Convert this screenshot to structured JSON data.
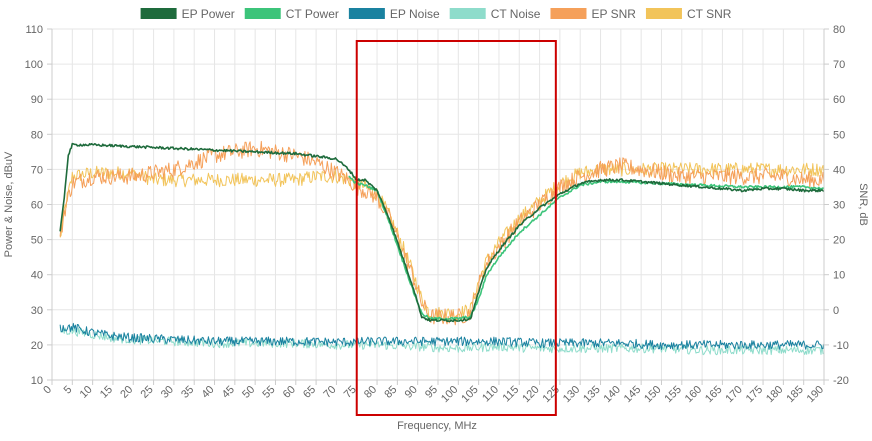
{
  "chart_data": {
    "type": "line",
    "title": "",
    "xlabel": "Frequency, MHz",
    "ylabel_left": "Power & Noise, dBuV",
    "ylabel_right": "SNR, dB",
    "xlim": [
      0,
      190
    ],
    "ylim_left": [
      10,
      110
    ],
    "ylim_right": [
      -20,
      80
    ],
    "x_ticks": [
      "0",
      "5",
      "10",
      "15",
      "20",
      "25",
      "30",
      "35",
      "40",
      "45",
      "50",
      "55",
      "60",
      "65",
      "70",
      "75",
      "80",
      "85",
      "90",
      "95",
      "100",
      "105",
      "110",
      "115",
      "120",
      "125",
      "130",
      "135",
      "140",
      "145",
      "150",
      "155",
      "160",
      "165",
      "170",
      "175",
      "180",
      "185",
      "190"
    ],
    "y_left_ticks": [
      "10",
      "20",
      "30",
      "40",
      "50",
      "60",
      "70",
      "80",
      "90",
      "100",
      "110"
    ],
    "y_right_ticks": [
      "-20",
      "-10",
      "0",
      "10",
      "20",
      "30",
      "40",
      "50",
      "60",
      "70",
      "80"
    ],
    "grid": true,
    "legend_position": "top-center",
    "legend": [
      {
        "name": "EP Power",
        "color": "#1e6b3c"
      },
      {
        "name": "CT Power",
        "color": "#3cc47a"
      },
      {
        "name": "EP Noise",
        "color": "#1a82a0"
      },
      {
        "name": "CT Noise",
        "color": "#8edccb"
      },
      {
        "name": "EP SNR",
        "color": "#f5a05a"
      },
      {
        "name": "CT SNR",
        "color": "#f2c45a"
      }
    ],
    "highlight_box": {
      "x_range": [
        75,
        124
      ],
      "color": "#cc0000"
    },
    "series": [
      {
        "name": "EP Power",
        "axis": "left",
        "color": "#1e6b3c",
        "points": [
          [
            2,
            52
          ],
          [
            3,
            62
          ],
          [
            4,
            74
          ],
          [
            5,
            77
          ],
          [
            10,
            77
          ],
          [
            20,
            76.5
          ],
          [
            30,
            76
          ],
          [
            40,
            75.5
          ],
          [
            50,
            75
          ],
          [
            60,
            74.5
          ],
          [
            70,
            73
          ],
          [
            73,
            70
          ],
          [
            75,
            67
          ],
          [
            77,
            67
          ],
          [
            80,
            64
          ],
          [
            83,
            56
          ],
          [
            86,
            46
          ],
          [
            89,
            36
          ],
          [
            91,
            28
          ],
          [
            93,
            27
          ],
          [
            100,
            27
          ],
          [
            103,
            27.5
          ],
          [
            105,
            35
          ],
          [
            107,
            42
          ],
          [
            110,
            47
          ],
          [
            115,
            54
          ],
          [
            120,
            59
          ],
          [
            125,
            63
          ],
          [
            130,
            66
          ],
          [
            135,
            67
          ],
          [
            140,
            67
          ],
          [
            145,
            66.5
          ],
          [
            150,
            66
          ],
          [
            155,
            65.5
          ],
          [
            160,
            65
          ],
          [
            165,
            64.5
          ],
          [
            170,
            64
          ],
          [
            175,
            64.5
          ],
          [
            180,
            64.5
          ],
          [
            185,
            64
          ],
          [
            190,
            64
          ]
        ]
      },
      {
        "name": "CT Power",
        "axis": "left",
        "color": "#3cc47a",
        "points": [
          [
            73,
            68
          ],
          [
            75,
            66
          ],
          [
            77,
            65.5
          ],
          [
            80,
            64
          ],
          [
            83,
            55
          ],
          [
            86,
            45
          ],
          [
            89,
            35
          ],
          [
            91,
            29
          ],
          [
            93,
            27.5
          ],
          [
            100,
            27.5
          ],
          [
            103,
            28
          ],
          [
            105,
            33
          ],
          [
            107,
            40
          ],
          [
            110,
            45
          ],
          [
            115,
            52
          ],
          [
            120,
            57
          ],
          [
            125,
            62
          ],
          [
            130,
            65.5
          ],
          [
            135,
            66.5
          ],
          [
            140,
            66.5
          ],
          [
            150,
            66
          ],
          [
            160,
            65.5
          ],
          [
            170,
            65
          ],
          [
            180,
            65
          ],
          [
            185,
            65
          ],
          [
            190,
            64.5
          ]
        ]
      },
      {
        "name": "EP Noise",
        "axis": "left",
        "color": "#1a82a0",
        "points": [
          [
            2,
            25
          ],
          [
            5,
            25
          ],
          [
            10,
            23.5
          ],
          [
            15,
            22.5
          ],
          [
            20,
            22
          ],
          [
            30,
            21.5
          ],
          [
            40,
            21
          ],
          [
            50,
            21
          ],
          [
            60,
            21
          ],
          [
            70,
            20.8
          ],
          [
            80,
            21
          ],
          [
            90,
            21
          ],
          [
            100,
            21
          ],
          [
            110,
            21
          ],
          [
            120,
            20.5
          ],
          [
            130,
            20.5
          ],
          [
            140,
            20.5
          ],
          [
            150,
            20
          ],
          [
            160,
            20
          ],
          [
            170,
            20
          ],
          [
            180,
            20
          ],
          [
            190,
            20
          ]
        ]
      },
      {
        "name": "CT Noise",
        "axis": "left",
        "color": "#8edccb",
        "points": [
          [
            2,
            24
          ],
          [
            5,
            24
          ],
          [
            10,
            23
          ],
          [
            15,
            22
          ],
          [
            20,
            21.5
          ],
          [
            30,
            21
          ],
          [
            40,
            20.5
          ],
          [
            50,
            20.5
          ],
          [
            60,
            20.5
          ],
          [
            70,
            20
          ],
          [
            80,
            20
          ],
          [
            90,
            19.5
          ],
          [
            100,
            19
          ],
          [
            110,
            19.5
          ],
          [
            120,
            19
          ],
          [
            130,
            19
          ],
          [
            140,
            19
          ],
          [
            150,
            19
          ],
          [
            160,
            18.5
          ],
          [
            170,
            18.5
          ],
          [
            180,
            18.5
          ],
          [
            190,
            18.5
          ]
        ]
      },
      {
        "name": "EP SNR",
        "axis": "right",
        "color": "#f5a05a",
        "points": [
          [
            2,
            20
          ],
          [
            3,
            28
          ],
          [
            5,
            36
          ],
          [
            10,
            38
          ],
          [
            15,
            38
          ],
          [
            20,
            38
          ],
          [
            25,
            39
          ],
          [
            30,
            40
          ],
          [
            35,
            42
          ],
          [
            40,
            44
          ],
          [
            45,
            45
          ],
          [
            50,
            46
          ],
          [
            55,
            45
          ],
          [
            60,
            44
          ],
          [
            65,
            42
          ],
          [
            70,
            39
          ],
          [
            73,
            37
          ],
          [
            75,
            35
          ],
          [
            77,
            34
          ],
          [
            80,
            32
          ],
          [
            83,
            26
          ],
          [
            86,
            18
          ],
          [
            89,
            9
          ],
          [
            91,
            2
          ],
          [
            93,
            -2
          ],
          [
            100,
            -2
          ],
          [
            103,
            -1
          ],
          [
            105,
            7
          ],
          [
            107,
            13
          ],
          [
            110,
            18
          ],
          [
            115,
            25
          ],
          [
            120,
            30
          ],
          [
            125,
            35
          ],
          [
            130,
            38
          ],
          [
            135,
            40
          ],
          [
            140,
            41
          ],
          [
            145,
            40
          ],
          [
            150,
            39
          ],
          [
            155,
            38
          ],
          [
            160,
            38
          ],
          [
            165,
            38
          ],
          [
            170,
            38
          ],
          [
            175,
            38
          ],
          [
            180,
            38
          ],
          [
            185,
            37
          ],
          [
            190,
            37
          ]
        ]
      },
      {
        "name": "CT SNR",
        "axis": "right",
        "color": "#f2c45a",
        "points": [
          [
            2,
            20
          ],
          [
            3,
            28
          ],
          [
            5,
            38
          ],
          [
            10,
            39
          ],
          [
            15,
            39
          ],
          [
            20,
            39
          ],
          [
            25,
            37
          ],
          [
            30,
            37
          ],
          [
            35,
            37
          ],
          [
            40,
            37
          ],
          [
            45,
            37
          ],
          [
            50,
            37
          ],
          [
            55,
            37
          ],
          [
            60,
            37
          ],
          [
            65,
            38
          ],
          [
            70,
            38
          ],
          [
            73,
            37
          ],
          [
            75,
            36
          ],
          [
            77,
            35
          ],
          [
            80,
            33
          ],
          [
            83,
            27
          ],
          [
            86,
            19
          ],
          [
            89,
            10
          ],
          [
            91,
            3
          ],
          [
            93,
            -1
          ],
          [
            100,
            -1
          ],
          [
            103,
            0
          ],
          [
            105,
            8
          ],
          [
            107,
            14
          ],
          [
            110,
            19
          ],
          [
            115,
            26
          ],
          [
            120,
            31
          ],
          [
            125,
            36
          ],
          [
            130,
            39
          ],
          [
            135,
            40
          ],
          [
            140,
            40
          ],
          [
            145,
            40
          ],
          [
            150,
            40
          ],
          [
            155,
            40
          ],
          [
            160,
            40
          ],
          [
            165,
            40
          ],
          [
            170,
            40
          ],
          [
            175,
            40
          ],
          [
            180,
            40
          ],
          [
            185,
            40
          ],
          [
            190,
            40
          ]
        ]
      }
    ]
  }
}
